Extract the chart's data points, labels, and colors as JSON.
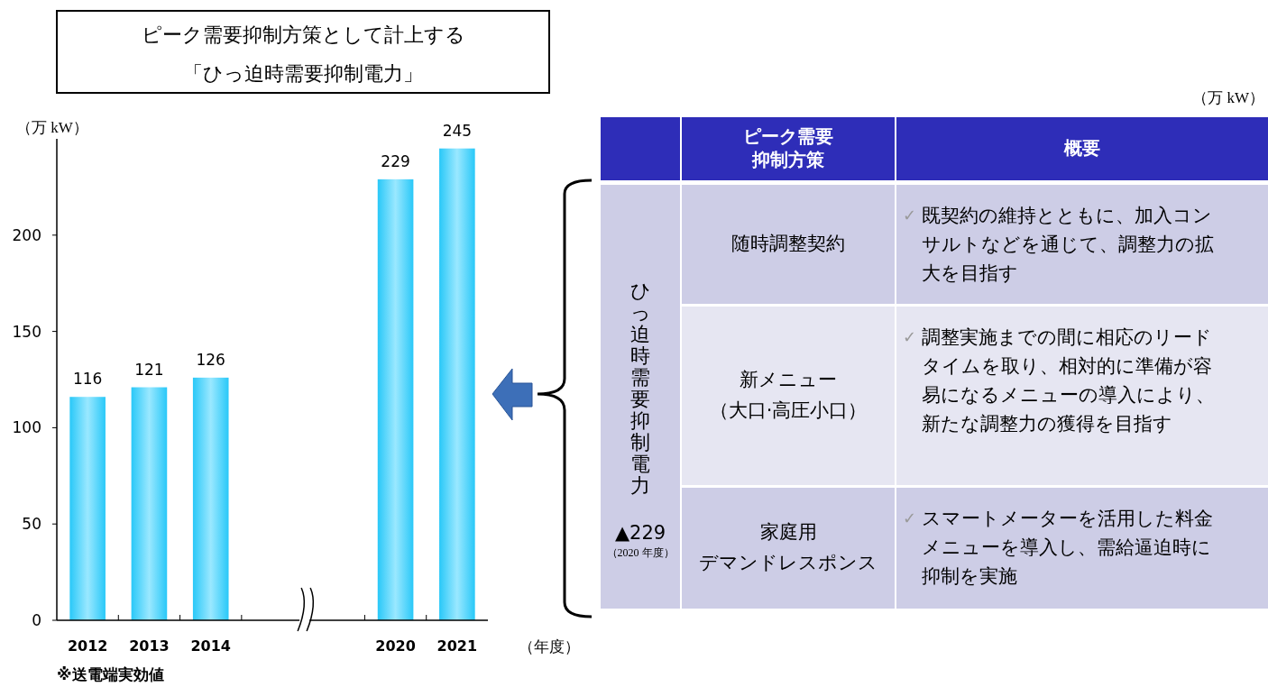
{
  "chart_data": [
    {
      "type": "bar",
      "title": "ピーク需要抑制方策として計上する",
      "subtitle": "「ひっ迫時需要抑制電力」",
      "ylabel": "（万 kW）",
      "xlabel": "（年度）",
      "categories": [
        "2012",
        "2013",
        "2014",
        null,
        null,
        "2020",
        "2021"
      ],
      "values": [
        116,
        121,
        126,
        null,
        null,
        229,
        245
      ],
      "color": "#29c8f8",
      "ylim": [
        0,
        250
      ],
      "yticks": [
        0,
        50,
        100,
        150,
        200
      ],
      "data_labels": true,
      "annotations": [
        "※送電端実効値"
      ]
    },
    {
      "type": "other",
      "annotations": [
        "（万 kW）",
        "ピーク需要抑制方策",
        "概要",
        "ひっ迫時需要抑制電力",
        "▲229",
        "（2020 年度）",
        "随時調整契約",
        "新メニュー（大口·高圧小口）",
        "家庭用デマンドレスポンス",
        "✓ 既契約の維持とともに、加入コンサルトなどを通じて、調整力の拡大を目指す",
        "✓ 調整実施までの間に相応のリードタイムを取り、相対的に準備が容易になるメニューの導入により、新たな調整力の獲得を目指す",
        "✓ スマートメーターを活用した料金メニューを導入し、需給逼迫時に抑制を実施"
      ]
    }
  ]
}
